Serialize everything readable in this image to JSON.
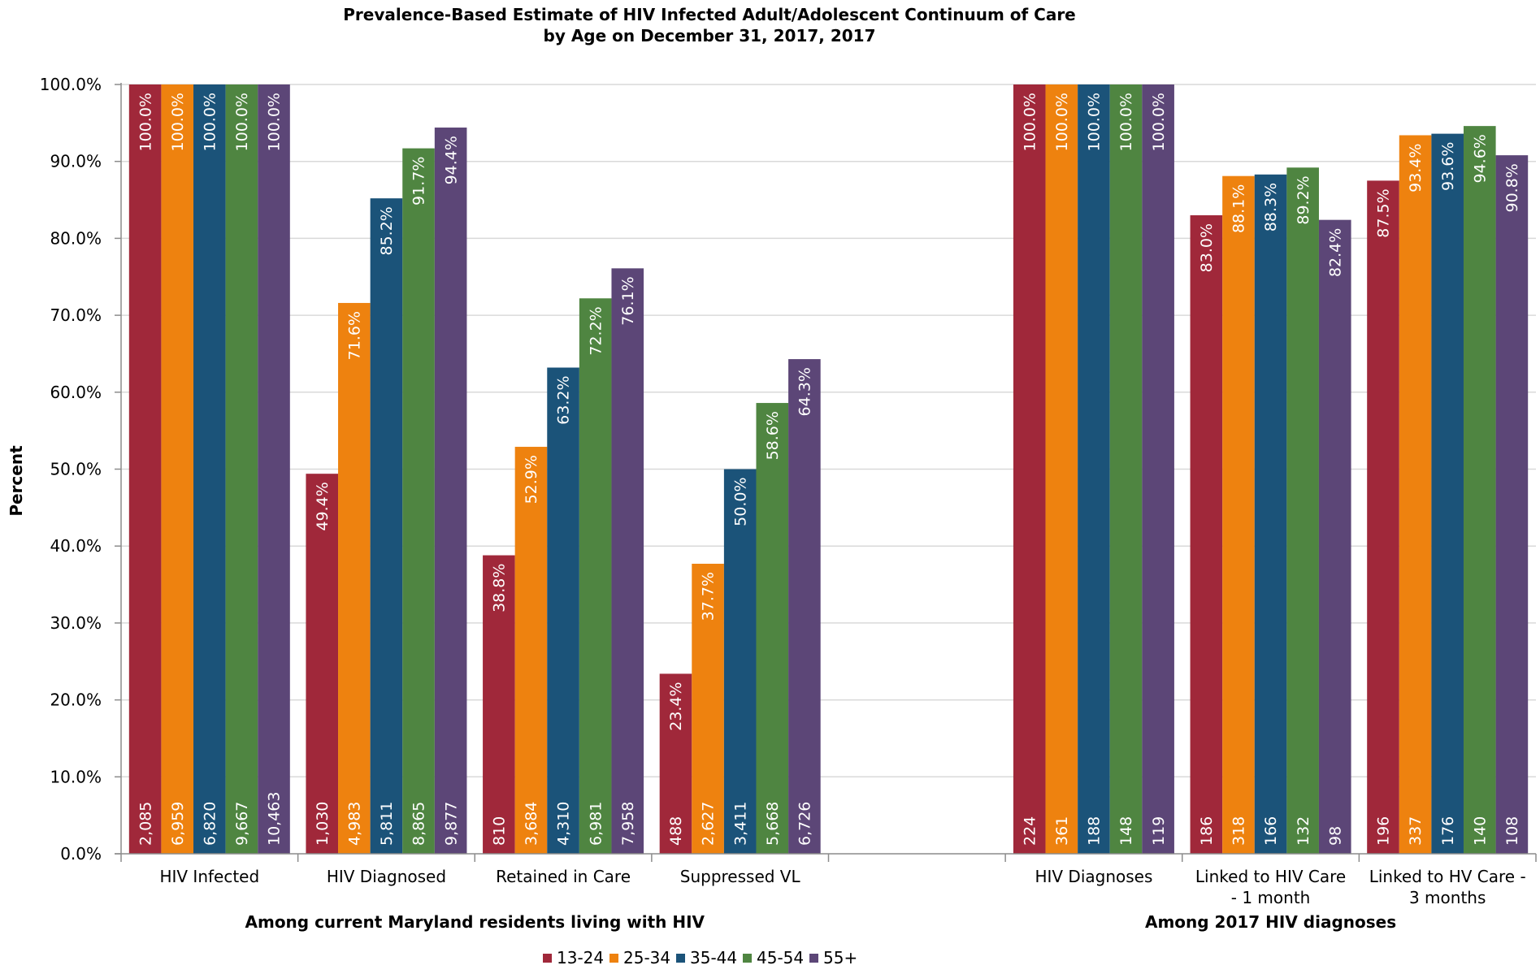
{
  "chart_data": {
    "type": "bar",
    "title_lines": [
      "Prevalence-Based Estimate of HIV Infected Adult/Adolescent Continuum of Care",
      "by Age on December 31, 2017, 2017"
    ],
    "ylabel": "Percent",
    "ylim": [
      0,
      100
    ],
    "yticks": [
      "0.0%",
      "10.0%",
      "20.0%",
      "30.0%",
      "40.0%",
      "50.0%",
      "60.0%",
      "70.0%",
      "80.0%",
      "90.0%",
      "100.0%"
    ],
    "grid": true,
    "legend_position": "bottom",
    "categories": [
      [
        "HIV Infected"
      ],
      [
        "HIV Diagnosed"
      ],
      [
        "Retained in Care"
      ],
      [
        "Suppressed VL"
      ],
      [
        ""
      ],
      [
        "HIV Diagnoses"
      ],
      [
        "Linked to HIV Care",
        "- 1 month"
      ],
      [
        "Linked to HV Care -",
        "3 months"
      ]
    ],
    "group_labels": [
      {
        "text": "Among current Maryland residents living with HIV",
        "from": 0,
        "to": 3
      },
      {
        "text": "Among 2017 HIV diagnoses",
        "from": 5,
        "to": 7
      }
    ],
    "series": [
      {
        "name": "13-24",
        "color": "#a0283a",
        "values": [
          100.0,
          49.4,
          38.8,
          23.4,
          null,
          100.0,
          83.0,
          87.5
        ],
        "labels": [
          "100.0%",
          "49.4%",
          "38.8%",
          "23.4%",
          "",
          "100.0%",
          "83.0%",
          "87.5%"
        ],
        "counts": [
          "2,085",
          "1,030",
          "810",
          "488",
          "",
          "224",
          "186",
          "196"
        ]
      },
      {
        "name": "25-34",
        "color": "#ee820f",
        "values": [
          100.0,
          71.6,
          52.9,
          37.7,
          null,
          100.0,
          88.1,
          93.4
        ],
        "labels": [
          "100.0%",
          "71.6%",
          "52.9%",
          "37.7%",
          "",
          "100.0%",
          "88.1%",
          "93.4%"
        ],
        "counts": [
          "6,959",
          "4,983",
          "3,684",
          "2,627",
          "",
          "361",
          "318",
          "337"
        ]
      },
      {
        "name": "35-44",
        "color": "#1b5379",
        "values": [
          100.0,
          85.2,
          63.2,
          50.0,
          null,
          100.0,
          88.3,
          93.6
        ],
        "labels": [
          "100.0%",
          "85.2%",
          "63.2%",
          "50.0%",
          "",
          "100.0%",
          "88.3%",
          "93.6%"
        ],
        "counts": [
          "6,820",
          "5,811",
          "4,310",
          "3,411",
          "",
          "188",
          "166",
          "176"
        ]
      },
      {
        "name": "45-54",
        "color": "#4f8541",
        "values": [
          100.0,
          91.7,
          72.2,
          58.6,
          null,
          100.0,
          89.2,
          94.6
        ],
        "labels": [
          "100.0%",
          "91.7%",
          "72.2%",
          "58.6%",
          "",
          "100.0%",
          "89.2%",
          "94.6%"
        ],
        "counts": [
          "9,667",
          "8,865",
          "6,981",
          "5,668",
          "",
          "148",
          "132",
          "140"
        ]
      },
      {
        "name": "55+",
        "color": "#5c4677",
        "values": [
          100.0,
          94.4,
          76.1,
          64.3,
          null,
          100.0,
          82.4,
          90.8
        ],
        "labels": [
          "100.0%",
          "94.4%",
          "76.1%",
          "64.3%",
          "",
          "100.0%",
          "82.4%",
          "90.8%"
        ],
        "counts": [
          "10,463",
          "9,877",
          "7,958",
          "6,726",
          "",
          "119",
          "98",
          "108"
        ]
      }
    ]
  }
}
